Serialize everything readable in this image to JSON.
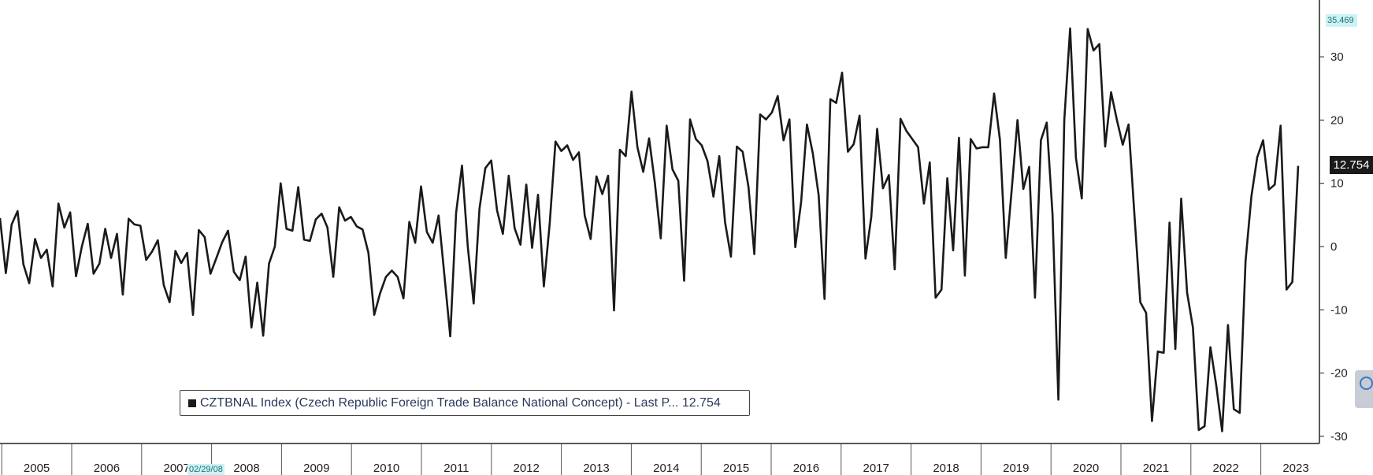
{
  "chart_data": {
    "type": "line",
    "title": "",
    "xlabel": "",
    "ylabel": "",
    "x_range": [
      "2004-10",
      "2023-06"
    ],
    "ylim": [
      -31.5,
      38
    ],
    "y_ticks": [
      30,
      20,
      10,
      0,
      -10,
      -20,
      -30
    ],
    "y_tick_labels": [
      "30",
      "20",
      "10",
      "0",
      "-10",
      "-20",
      "-30"
    ],
    "x_tick_labels": [
      "2005",
      "2006",
      "2007",
      "2008",
      "2009",
      "2010",
      "2011",
      "2012",
      "2013",
      "2014",
      "2015",
      "2016",
      "2017",
      "2018",
      "2019",
      "2020",
      "2021",
      "2022",
      "2023"
    ],
    "grid": false,
    "y_axis_position": "right",
    "series": [
      {
        "name": "CZTBNAL Index",
        "color": "#1a1a1a",
        "start": "2004-10",
        "frequency": "monthly",
        "values": [
          4.5,
          -4.2,
          3.5,
          5.6,
          -2.8,
          -5.8,
          1.2,
          -1.8,
          -0.5,
          -6.3,
          6.8,
          3.0,
          5.4,
          -4.7,
          0.0,
          3.6,
          -4.3,
          -2.7,
          2.8,
          -1.8,
          2.0,
          -7.6,
          4.4,
          3.5,
          3.3,
          -2.1,
          -0.8,
          1.0,
          -6.1,
          -8.8,
          -0.7,
          -2.6,
          -1.0,
          -10.8,
          2.6,
          1.5,
          -4.3,
          -1.8,
          0.7,
          2.5,
          -4.0,
          -5.3,
          -1.6,
          -12.8,
          -5.7,
          -14.1,
          -2.7,
          0.0,
          10.0,
          2.8,
          2.5,
          9.4,
          1.1,
          0.9,
          4.3,
          5.2,
          3.0,
          -4.8,
          6.2,
          4.1,
          4.7,
          3.2,
          2.7,
          -1.0,
          -10.8,
          -7.4,
          -4.8,
          -3.8,
          -4.8,
          -8.2,
          3.9,
          0.6,
          9.5,
          2.3,
          0.6,
          4.9,
          -4.6,
          -14.2,
          5.3,
          12.8,
          -0.1,
          -9.0,
          6.0,
          12.4,
          13.6,
          5.7,
          2.0,
          11.2,
          2.9,
          0.3,
          9.8,
          -0.2,
          8.2,
          -6.3,
          3.6,
          16.6,
          15.1,
          16.0,
          13.7,
          14.9,
          4.9,
          1.2,
          11.1,
          8.3,
          11.2,
          -10.1,
          15.3,
          14.3,
          24.5,
          15.7,
          11.8,
          17.1,
          10.0,
          1.3,
          19.1,
          12.2,
          10.4,
          -5.4,
          20.1,
          17.0,
          16.0,
          13.5,
          7.9,
          14.3,
          3.8,
          -1.6,
          15.8,
          15.0,
          9.4,
          -1.2,
          20.9,
          20.1,
          21.2,
          23.8,
          16.8,
          20.1,
          -0.1,
          7.0,
          19.3,
          14.7,
          8.1,
          -8.3,
          23.3,
          22.7,
          27.5,
          15.0,
          16.2,
          20.7,
          -1.9,
          4.7,
          18.6,
          9.2,
          11.3,
          -3.6,
          20.2,
          18.3,
          17.0,
          15.7,
          6.8,
          13.3,
          -8.1,
          -6.8,
          10.8,
          -0.6,
          17.2,
          -4.6,
          17.0,
          15.5,
          15.7,
          15.7,
          24.2,
          16.9,
          -1.8,
          8.9,
          20.0,
          9.1,
          12.6,
          -8.1,
          16.8,
          19.6,
          5.0,
          -24.2,
          20.0,
          34.5,
          14.0,
          7.6,
          34.4,
          31.0,
          32.0,
          15.8,
          24.4,
          20.0,
          16.1,
          19.3,
          5.1,
          -8.8,
          -10.5,
          -27.6,
          -16.6,
          -16.8,
          3.8,
          -16.2,
          7.6,
          -7.3,
          -12.8,
          -29.0,
          -28.4,
          -15.9,
          -22.0,
          -29.2,
          -12.4,
          -25.7,
          -26.3,
          -2.3,
          7.9,
          14.1,
          16.8,
          9.0,
          9.8,
          19.1,
          -6.8,
          -5.6,
          12.754
        ]
      }
    ],
    "last_value_label": "12.754",
    "max_value_label": "35.469",
    "legend": {
      "text": "CZTBNAL Index (Czech Republic Foreign Trade Balance National Concept) - Last P... 12.754",
      "placement": "bottom-left"
    },
    "cursor_date_label": "02/29/08"
  },
  "colors": {
    "line": "#1a1a1a",
    "axis": "#222222",
    "highlight_bg": "#ccf3f3",
    "highlight_text": "#1f6f7a",
    "last_value_bg": "#1a1a1a"
  },
  "icons": {
    "scroll_tab": "chart-scroll-icon"
  }
}
